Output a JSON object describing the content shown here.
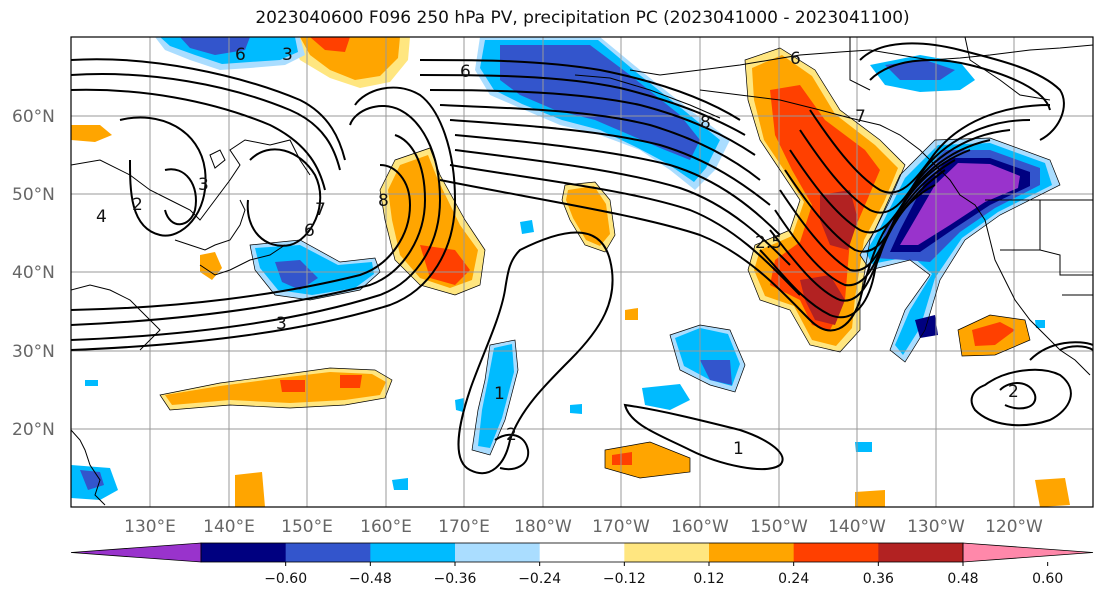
{
  "title": "2023040600 F096 250 hPa PV, precipitation PC (2023041000 - 2023041100)",
  "lat_labels": [
    "60°N",
    "50°N",
    "40°N",
    "30°N",
    "20°N"
  ],
  "lon_labels": [
    "130°E",
    "140°E",
    "150°E",
    "160°E",
    "170°E",
    "180°W",
    "170°W",
    "160°W",
    "150°W",
    "140°W",
    "130°W",
    "120°W"
  ],
  "colorbar": {
    "ticks": [
      "−0.60",
      "−0.48",
      "−0.36",
      "−0.24",
      "−0.12",
      "0.12",
      "0.24",
      "0.36",
      "0.48",
      "0.60"
    ],
    "colors": [
      "#9933cc",
      "#000080",
      "#3355cc",
      "#00bbff",
      "#aaddff",
      "#ffffff",
      "#ffe680",
      "#ffa500",
      "#ff4000",
      "#b22222",
      "#ff88aa"
    ]
  },
  "contour_labels": [
    "3",
    "6",
    "8",
    "7",
    "6",
    "4",
    "3",
    "2",
    "8",
    "6",
    "7",
    "3",
    "1",
    "2",
    "1",
    "2",
    "2.5",
    "6"
  ],
  "colors": {
    "contour": "#000000",
    "coast": "#000000",
    "grid": "#999999"
  }
}
